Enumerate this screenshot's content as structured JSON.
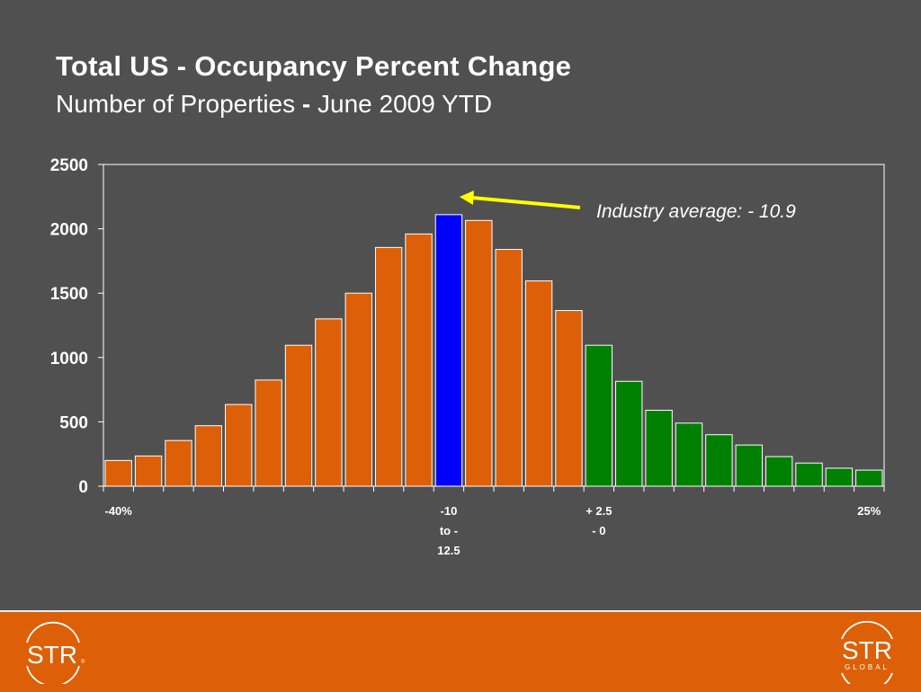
{
  "slide": {
    "title": "Total US - Occupancy Percent Change",
    "subtitle_main": "Number of Properties",
    "subtitle_dash": " - ",
    "subtitle_period": "June 2009 YTD"
  },
  "chart_data": {
    "type": "bar",
    "title": "Total US - Occupancy Percent Change",
    "subtitle": "Number of Properties - June 2009 YTD",
    "xlabel": "",
    "ylabel": "",
    "ylim": [
      0,
      2500
    ],
    "yticks": [
      0,
      500,
      1000,
      1500,
      2000,
      2500
    ],
    "grid": false,
    "legend": "none",
    "values": [
      200,
      235,
      355,
      470,
      635,
      825,
      1095,
      1300,
      1500,
      1855,
      1960,
      2110,
      2065,
      1840,
      1595,
      1365,
      1095,
      815,
      590,
      490,
      400,
      320,
      230,
      180,
      140,
      125
    ],
    "bar_colors": [
      "#dd5f07",
      "#dd5f07",
      "#dd5f07",
      "#dd5f07",
      "#dd5f07",
      "#dd5f07",
      "#dd5f07",
      "#dd5f07",
      "#dd5f07",
      "#dd5f07",
      "#dd5f07",
      "#0000ff",
      "#dd5f07",
      "#dd5f07",
      "#dd5f07",
      "#dd5f07",
      "#008000",
      "#008000",
      "#008000",
      "#008000",
      "#008000",
      "#008000",
      "#008000",
      "#008000",
      "#008000",
      "#008000"
    ],
    "x_labels": [
      {
        "bar_index": 0,
        "lines": [
          "-40%"
        ]
      },
      {
        "bar_index": 11,
        "lines": [
          "-10",
          "to -",
          "12.5"
        ]
      },
      {
        "bar_index": 16,
        "lines": [
          "+ 2.5",
          "- 0"
        ]
      },
      {
        "bar_index": 25,
        "lines": [
          "25%"
        ]
      }
    ],
    "annotation": {
      "text": "Industry average: - 10.9",
      "points_to_bar_index": 11,
      "arrow_color": "#ffff00"
    }
  },
  "footer": {
    "logo_left_text": "STR",
    "logo_right_text": "STR",
    "logo_right_subtext": "GLOBAL",
    "background_color": "#dd5f07"
  }
}
